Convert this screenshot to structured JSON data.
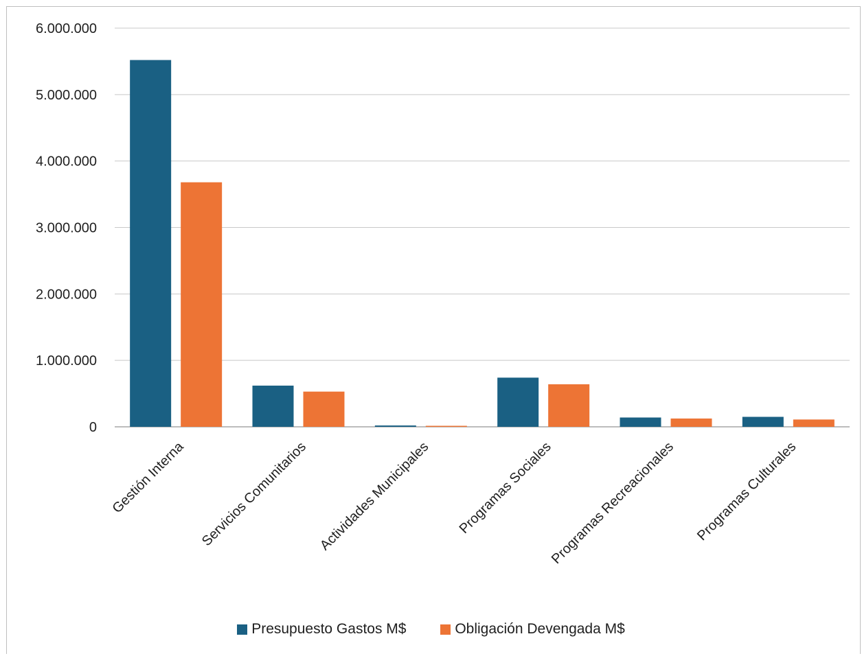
{
  "chart_data": {
    "type": "bar",
    "categories": [
      "Gestión Interna",
      "Servicios Comunitarios",
      "Actividades Municipales",
      "Programas Sociales",
      "Programas Recreacionales",
      "Programas Culturales"
    ],
    "series": [
      {
        "name": "Presupuesto Gastos M$",
        "color": "#1a6083",
        "values": [
          5520000,
          620000,
          20000,
          740000,
          140000,
          150000
        ]
      },
      {
        "name": "Obligación Devengada M$",
        "color": "#ed7435",
        "values": [
          3680000,
          530000,
          15000,
          640000,
          125000,
          110000
        ]
      }
    ],
    "ylim": [
      0,
      6000000
    ],
    "yticks": [
      0,
      1000000,
      2000000,
      3000000,
      4000000,
      5000000,
      6000000
    ],
    "ytick_labels": [
      "0",
      "1.000.000",
      "2.000.000",
      "3.000.000",
      "4.000.000",
      "5.000.000",
      "6.000.000"
    ],
    "grid": true,
    "legend_position": "bottom"
  }
}
